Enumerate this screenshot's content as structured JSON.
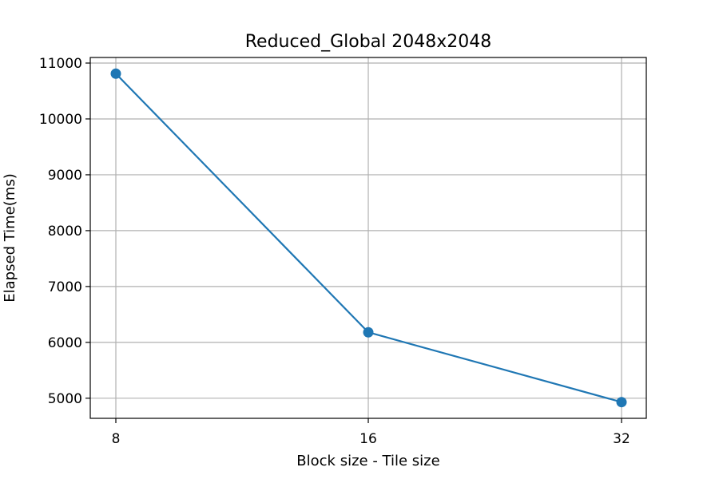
{
  "chart_data": {
    "type": "line",
    "title": "Reduced_Global 2048x2048",
    "xlabel": "Block size - Tile size",
    "ylabel": "Elapsed Time(ms)",
    "categories": [
      "8",
      "16",
      "32"
    ],
    "series": [
      {
        "values": [
          10810,
          6180,
          4930
        ],
        "color": "#1f77b4",
        "marker": "circle"
      }
    ],
    "yticks": [
      5000,
      6000,
      7000,
      8000,
      9000,
      10000,
      11000
    ],
    "ytick_labels": [
      "5000",
      "6000",
      "7000",
      "8000",
      "9000",
      "10000",
      "11000"
    ],
    "ylim": [
      4640,
      11100
    ],
    "grid": true,
    "colors": {
      "grid": "#b0b0b0",
      "axes": "#000000",
      "background": "#ffffff"
    }
  }
}
